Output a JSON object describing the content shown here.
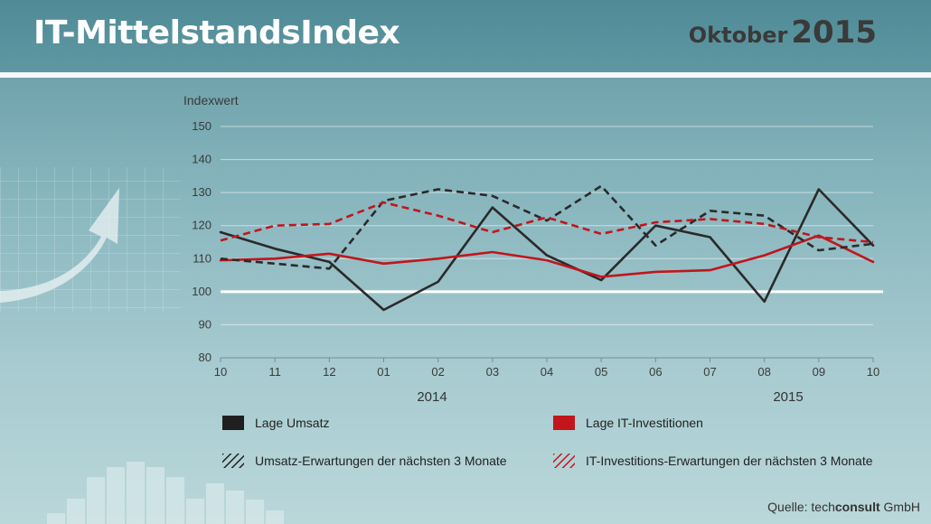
{
  "header": {
    "title": "IT-MittelstandsIndex",
    "month": "Oktober",
    "year": "2015"
  },
  "chart_data": {
    "type": "line",
    "ylabel": "Indexwert",
    "ylim": [
      80,
      150
    ],
    "yticks": [
      80,
      90,
      100,
      110,
      120,
      130,
      140,
      150
    ],
    "categories": [
      "10",
      "11",
      "12",
      "01",
      "02",
      "03",
      "04",
      "05",
      "06",
      "07",
      "08",
      "09",
      "10"
    ],
    "year_labels": [
      "2014",
      "2015"
    ],
    "reference_line": 100,
    "grid": true,
    "legend_position": "bottom",
    "series": [
      {
        "name": "Lage Umsatz",
        "color": "#2a2a2a",
        "dashed": false,
        "values": [
          118,
          113,
          109,
          94.5,
          103,
          125.5,
          111,
          103.5,
          120,
          116.5,
          97,
          131,
          114
        ]
      },
      {
        "name": "Lage IT-Investitionen",
        "color": "#c0161c",
        "dashed": false,
        "values": [
          109.5,
          110,
          111.5,
          108.5,
          110,
          112,
          109.5,
          104.5,
          106,
          106.5,
          111,
          117,
          109
        ]
      },
      {
        "name": "Umsatz-Erwartungen der nächsten 3 Monate",
        "color": "#2a2a2a",
        "dashed": true,
        "values": [
          110,
          108.5,
          107,
          127.5,
          131,
          129,
          121.5,
          132,
          114,
          124.5,
          123,
          112.5,
          114.5
        ]
      },
      {
        "name": "IT-Investitions-Erwartungen der nächsten 3 Monate",
        "color": "#c0161c",
        "dashed": true,
        "values": [
          115.5,
          120,
          120.5,
          127,
          123,
          118,
          122.5,
          117.5,
          121,
          122,
          120.5,
          116.5,
          115
        ]
      }
    ]
  },
  "source": {
    "prefix": "Quelle: ",
    "brand_light": "tech",
    "brand_bold": "consult",
    "suffix": " GmbH"
  }
}
